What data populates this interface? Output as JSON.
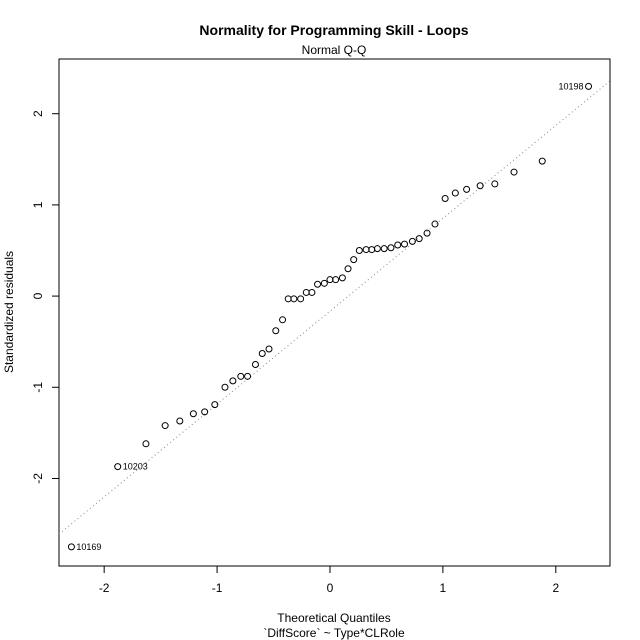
{
  "chart_data": {
    "type": "scatter",
    "title": "Normality for Programming Skill - Loops",
    "subtitle": "Normal Q-Q",
    "xlabel": "Theoretical Quantiles",
    "xlabel2": "`DiffScore` ~ Type*CLRole",
    "ylabel": "Standardized residuals",
    "xlim": [
      -2.4,
      2.48
    ],
    "ylim": [
      -2.96,
      2.6
    ],
    "xticks": [
      "-2",
      "-1",
      "0",
      "1",
      "2"
    ],
    "xtick_values": [
      -2,
      -1,
      0,
      1,
      2
    ],
    "yticks": [
      "-2",
      "-1",
      "0",
      "1",
      "2"
    ],
    "ytick_values": [
      -2,
      -1,
      0,
      1,
      2
    ],
    "reference_line": {
      "x1": -2.4,
      "y1": -2.61,
      "x2": 2.48,
      "y2": 2.36
    },
    "points": {
      "x": [
        -2.29,
        -1.88,
        -1.63,
        -1.46,
        -1.33,
        -1.21,
        -1.11,
        -1.02,
        -0.93,
        -0.86,
        -0.79,
        -0.73,
        -0.66,
        -0.6,
        -0.54,
        -0.48,
        -0.42,
        -0.37,
        -0.32,
        -0.26,
        -0.21,
        -0.16,
        -0.11,
        -0.05,
        0.0,
        0.05,
        0.11,
        0.16,
        0.21,
        0.26,
        0.32,
        0.37,
        0.42,
        0.48,
        0.54,
        0.6,
        0.66,
        0.73,
        0.79,
        0.86,
        0.93,
        1.02,
        1.11,
        1.21,
        1.33,
        1.46,
        1.63,
        1.88,
        2.29
      ],
      "y": [
        -2.75,
        -1.87,
        -1.62,
        -1.42,
        -1.37,
        -1.29,
        -1.27,
        -1.19,
        -1.0,
        -0.93,
        -0.88,
        -0.88,
        -0.75,
        -0.63,
        -0.58,
        -0.38,
        -0.26,
        -0.03,
        -0.03,
        -0.03,
        0.04,
        0.04,
        0.13,
        0.14,
        0.18,
        0.18,
        0.2,
        0.3,
        0.4,
        0.5,
        0.51,
        0.51,
        0.52,
        0.52,
        0.53,
        0.56,
        0.57,
        0.6,
        0.63,
        0.69,
        0.79,
        1.07,
        1.13,
        1.17,
        1.21,
        1.23,
        1.36,
        1.48,
        2.3
      ]
    },
    "annotations": [
      {
        "text": "10198",
        "x": 2.29,
        "y": 2.3,
        "side": "left"
      },
      {
        "text": "10203",
        "x": -1.88,
        "y": -1.87,
        "side": "right"
      },
      {
        "text": "10169",
        "x": -2.29,
        "y": -2.75,
        "side": "right"
      }
    ],
    "grid": false,
    "legend": "none"
  }
}
